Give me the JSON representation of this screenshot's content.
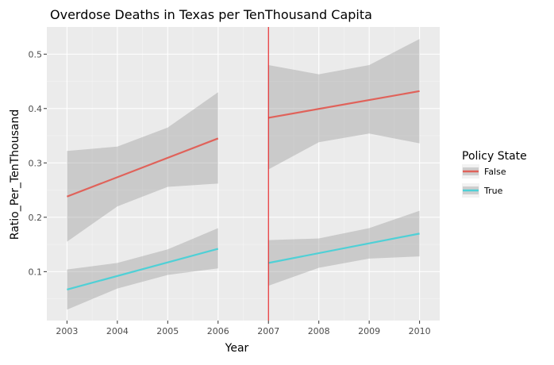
{
  "chart_data": {
    "type": "line",
    "title": "Overdose Deaths in Texas per TenThousand Capita",
    "xlabel": "Year",
    "ylabel": "Ratio_Per_TenThousand",
    "x_ticks": [
      2003,
      2004,
      2005,
      2006,
      2007,
      2008,
      2009,
      2010
    ],
    "y_ticks": [
      0.1,
      0.2,
      0.3,
      0.4,
      0.5
    ],
    "xlim": [
      2002.6,
      2010.4
    ],
    "ylim": [
      0.01,
      0.55
    ],
    "grid": true,
    "legend_position": "right",
    "legend_title": "Policy State",
    "vline": {
      "x": 2007,
      "color": "#e41a1c"
    },
    "series": [
      {
        "name": "False",
        "color": "#e0625a",
        "segments": [
          {
            "x": [
              2003,
              2006
            ],
            "y": [
              0.238,
              0.345
            ],
            "ci_lower": [
              0.155,
              0.262
            ],
            "ci_upper": [
              0.322,
              0.43
            ]
          },
          {
            "x": [
              2007,
              2010
            ],
            "y": [
              0.383,
              0.432
            ],
            "ci_lower": [
              0.288,
              0.336
            ],
            "ci_upper": [
              0.48,
              0.528
            ]
          }
        ],
        "ci_points": [
          {
            "x": 2003,
            "lower": 0.155,
            "upper": 0.322
          },
          {
            "x": 2004,
            "lower": 0.22,
            "upper": 0.33
          },
          {
            "x": 2005,
            "lower": 0.256,
            "upper": 0.365
          },
          {
            "x": 2006,
            "lower": 0.262,
            "upper": 0.43
          },
          {
            "x": 2007,
            "lower": 0.288,
            "upper": 0.48
          },
          {
            "x": 2008,
            "lower": 0.338,
            "upper": 0.463
          },
          {
            "x": 2009,
            "lower": 0.354,
            "upper": 0.48
          },
          {
            "x": 2010,
            "lower": 0.336,
            "upper": 0.528
          }
        ]
      },
      {
        "name": "True",
        "color": "#4fd0d6",
        "segments": [
          {
            "x": [
              2003,
              2006
            ],
            "y": [
              0.067,
              0.142
            ],
            "ci_lower": [
              0.03,
              0.106
            ],
            "ci_upper": [
              0.104,
              0.18
            ]
          },
          {
            "x": [
              2007,
              2010
            ],
            "y": [
              0.116,
              0.17
            ],
            "ci_lower": [
              0.074,
              0.128
            ],
            "ci_upper": [
              0.158,
              0.212
            ]
          }
        ],
        "ci_points": [
          {
            "x": 2003,
            "lower": 0.03,
            "upper": 0.104
          },
          {
            "x": 2004,
            "lower": 0.069,
            "upper": 0.116
          },
          {
            "x": 2005,
            "lower": 0.094,
            "upper": 0.141
          },
          {
            "x": 2006,
            "lower": 0.106,
            "upper": 0.18
          },
          {
            "x": 2007,
            "lower": 0.074,
            "upper": 0.158
          },
          {
            "x": 2008,
            "lower": 0.107,
            "upper": 0.161
          },
          {
            "x": 2009,
            "lower": 0.124,
            "upper": 0.18
          },
          {
            "x": 2010,
            "lower": 0.128,
            "upper": 0.212
          }
        ]
      }
    ]
  }
}
